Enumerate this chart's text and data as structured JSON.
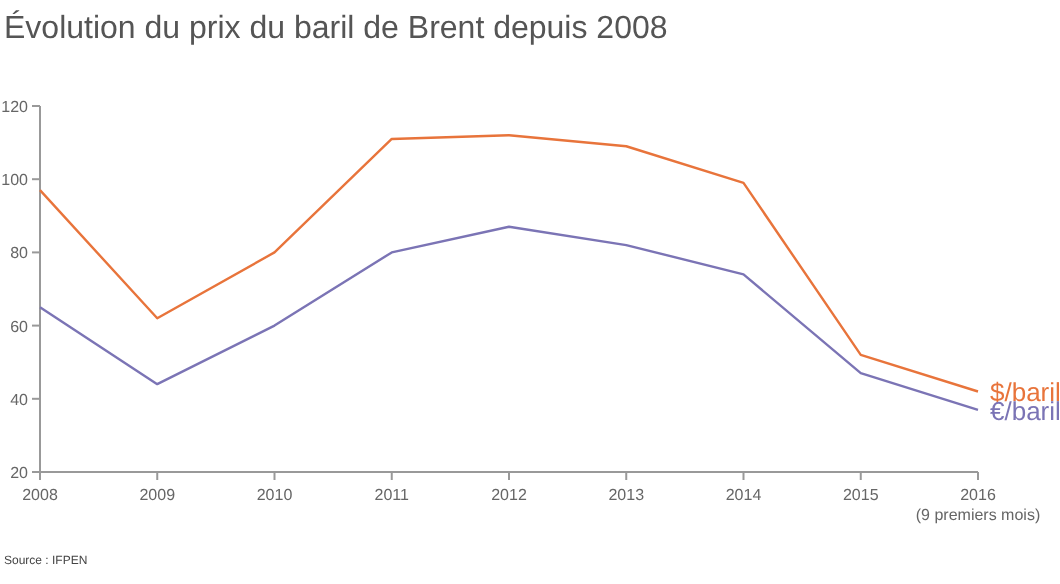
{
  "chart_data": {
    "type": "line",
    "title": "Évolution du prix du baril de Brent depuis 2008",
    "categories": [
      "2008",
      "2009",
      "2010",
      "2011",
      "2012",
      "2013",
      "2014",
      "2015",
      "2016\n(9 premiers mois)"
    ],
    "series": [
      {
        "name": "$/baril",
        "color": "#e8743b",
        "values": [
          97,
          62,
          80,
          111,
          112,
          109,
          99,
          52,
          42
        ]
      },
      {
        "name": "€/baril",
        "color": "#7b74b5",
        "values": [
          65,
          44,
          60,
          80,
          87,
          82,
          74,
          47,
          37
        ]
      }
    ],
    "ylim": [
      20,
      120
    ],
    "yticks": [
      20,
      40,
      60,
      80,
      100,
      120
    ],
    "grid": false,
    "annotations": [
      "Source : IFPEN"
    ]
  }
}
